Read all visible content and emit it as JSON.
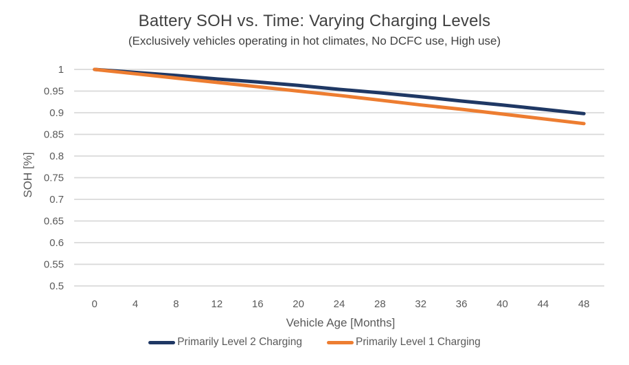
{
  "chart_data": {
    "type": "line",
    "title": "Battery SOH vs. Time: Varying Charging Levels",
    "subtitle": "(Exclusively vehicles operating in hot climates, No DCFC use, High use)",
    "xlabel": "Vehicle Age [Months]",
    "ylabel": "SOH [%]",
    "categories": [
      0,
      4,
      8,
      12,
      16,
      20,
      24,
      28,
      32,
      36,
      40,
      44,
      48
    ],
    "y_ticks": [
      1,
      0.95,
      0.9,
      0.85,
      0.8,
      0.75,
      0.7,
      0.65,
      0.6,
      0.55,
      0.5
    ],
    "ylim": [
      0.5,
      1.0
    ],
    "xlim": [
      0,
      48
    ],
    "grid": "horizontal",
    "markers": "none",
    "legend_position": "bottom",
    "series": [
      {
        "name": "Primarily Level 2 Charging",
        "color": "#1F3864",
        "values": [
          1.0,
          0.993,
          0.986,
          0.978,
          0.971,
          0.963,
          0.954,
          0.946,
          0.937,
          0.927,
          0.918,
          0.908,
          0.898
        ]
      },
      {
        "name": "Primarily Level 1 Charging",
        "color": "#ED7D31",
        "values": [
          1.0,
          0.99,
          0.98,
          0.97,
          0.96,
          0.95,
          0.94,
          0.929,
          0.918,
          0.908,
          0.897,
          0.886,
          0.875
        ]
      }
    ],
    "colors": {
      "title_text": "#404040",
      "subtitle_text": "#404040",
      "axis_text": "#595959",
      "legend_text": "#595959",
      "gridline": "#D9D9D9",
      "background": "#FFFFFF"
    }
  }
}
